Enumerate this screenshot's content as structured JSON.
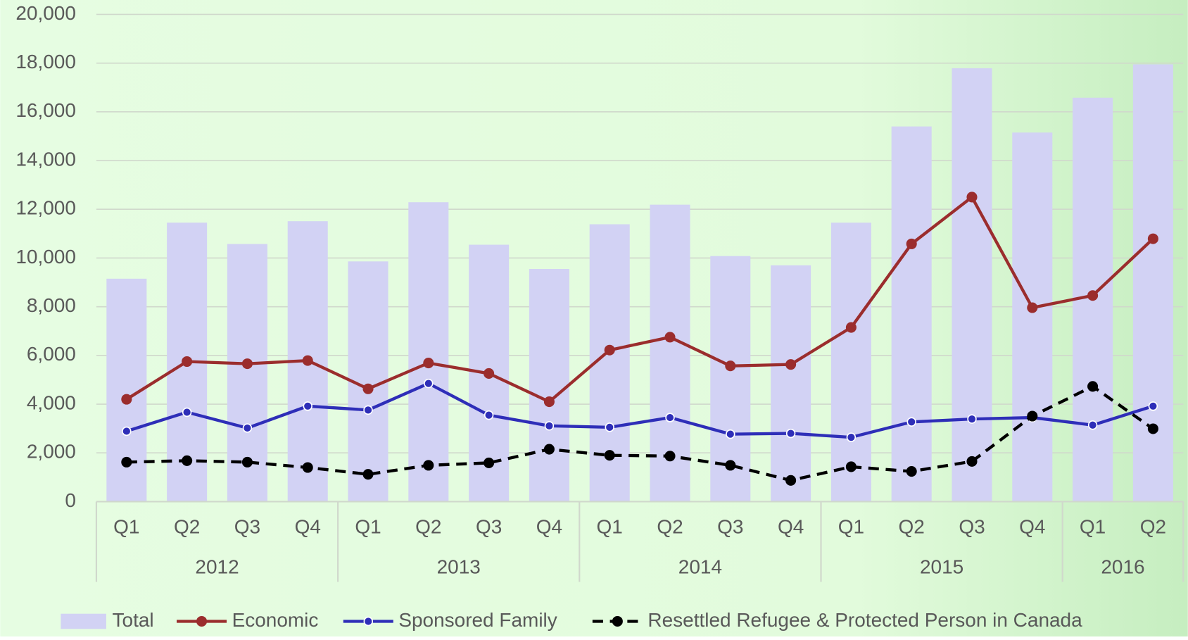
{
  "chart_data": {
    "type": "bar-line",
    "categories": [
      "Q1",
      "Q2",
      "Q3",
      "Q4",
      "Q1",
      "Q2",
      "Q3",
      "Q4",
      "Q1",
      "Q2",
      "Q3",
      "Q4",
      "Q1",
      "Q2",
      "Q3",
      "Q4",
      "Q1",
      "Q2"
    ],
    "groups": [
      {
        "label": "2012",
        "span": 4
      },
      {
        "label": "2013",
        "span": 4
      },
      {
        "label": "2014",
        "span": 4
      },
      {
        "label": "2015",
        "span": 4
      },
      {
        "label": "2016",
        "span": 2
      }
    ],
    "series": [
      {
        "name": "Total",
        "type": "bar",
        "color": "#d2d2f4",
        "values": [
          9150,
          11450,
          10575,
          11510,
          9860,
          12290,
          10545,
          9550,
          11385,
          12190,
          10080,
          9700,
          11450,
          15400,
          17790,
          15150,
          16580,
          17950
        ]
      },
      {
        "name": "Economic",
        "type": "line",
        "color": "#9b2d2d",
        "values": [
          4200,
          5750,
          5660,
          5790,
          4630,
          5690,
          5260,
          4100,
          6220,
          6750,
          5570,
          5630,
          7150,
          10580,
          12500,
          7960,
          8460,
          10790
        ]
      },
      {
        "name": "Sponsored Family",
        "type": "line",
        "color": "#2e2eb8",
        "values": [
          2890,
          3670,
          3020,
          3920,
          3760,
          4850,
          3550,
          3110,
          3050,
          3450,
          2770,
          2800,
          2640,
          3270,
          3390,
          3450,
          3140,
          3920
        ]
      },
      {
        "name": "Resettled Refugee & Protected Person in Canada",
        "type": "line",
        "color": "#000000",
        "dashed": true,
        "values": [
          1620,
          1680,
          1620,
          1400,
          1120,
          1490,
          1590,
          2150,
          1900,
          1870,
          1490,
          870,
          1430,
          1240,
          1650,
          3510,
          4730,
          2990
        ]
      }
    ],
    "ylim": [
      0,
      20000
    ],
    "yticks": [
      0,
      {
        "value": 2000,
        "label": "2,000"
      },
      {
        "value": 4000,
        "label": "4,000"
      },
      {
        "value": 6000,
        "label": "6,000"
      },
      {
        "value": 8000,
        "label": "8,000"
      },
      {
        "value": 10000,
        "label": "10,000"
      },
      {
        "value": 12000,
        "label": "12,000"
      },
      {
        "value": 14000,
        "label": "14,000"
      },
      {
        "value": 16000,
        "label": "16,000"
      },
      {
        "value": 18000,
        "label": "18,000"
      },
      {
        "value": 20000,
        "label": "20,000"
      }
    ],
    "grid": true,
    "legend": "bottom"
  }
}
